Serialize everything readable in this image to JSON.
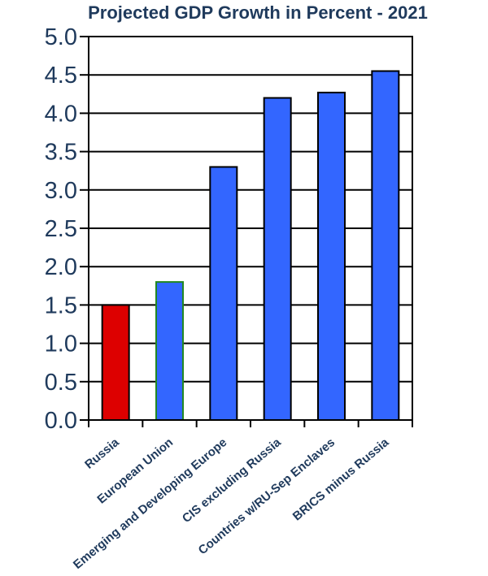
{
  "chart_data": {
    "type": "bar",
    "title": "Projected GDP Growth in Percent - 2021",
    "categories": [
      "Russia",
      "European Union",
      "Emerging and Developing Europe",
      "CIS excluding Russia",
      "Countries w/RU-Sep Enclaves",
      "BRICS minus Russia"
    ],
    "values": [
      1.5,
      1.8,
      3.3,
      4.2,
      4.27,
      4.55
    ],
    "bar_colors": [
      "#dd0000",
      "#3366ff",
      "#3366ff",
      "#3366ff",
      "#3366ff",
      "#3366ff"
    ],
    "bar_edge_colors": [
      "#000000",
      "#228822",
      "#000000",
      "#000000",
      "#000000",
      "#000000"
    ],
    "ylim": [
      0,
      5
    ],
    "yticks": [
      "0.0",
      "0.5",
      "1.0",
      "1.5",
      "2.0",
      "2.5",
      "3.0",
      "3.5",
      "4.0",
      "4.5",
      "5.0"
    ],
    "grid": true,
    "xlabel": "",
    "ylabel": ""
  }
}
